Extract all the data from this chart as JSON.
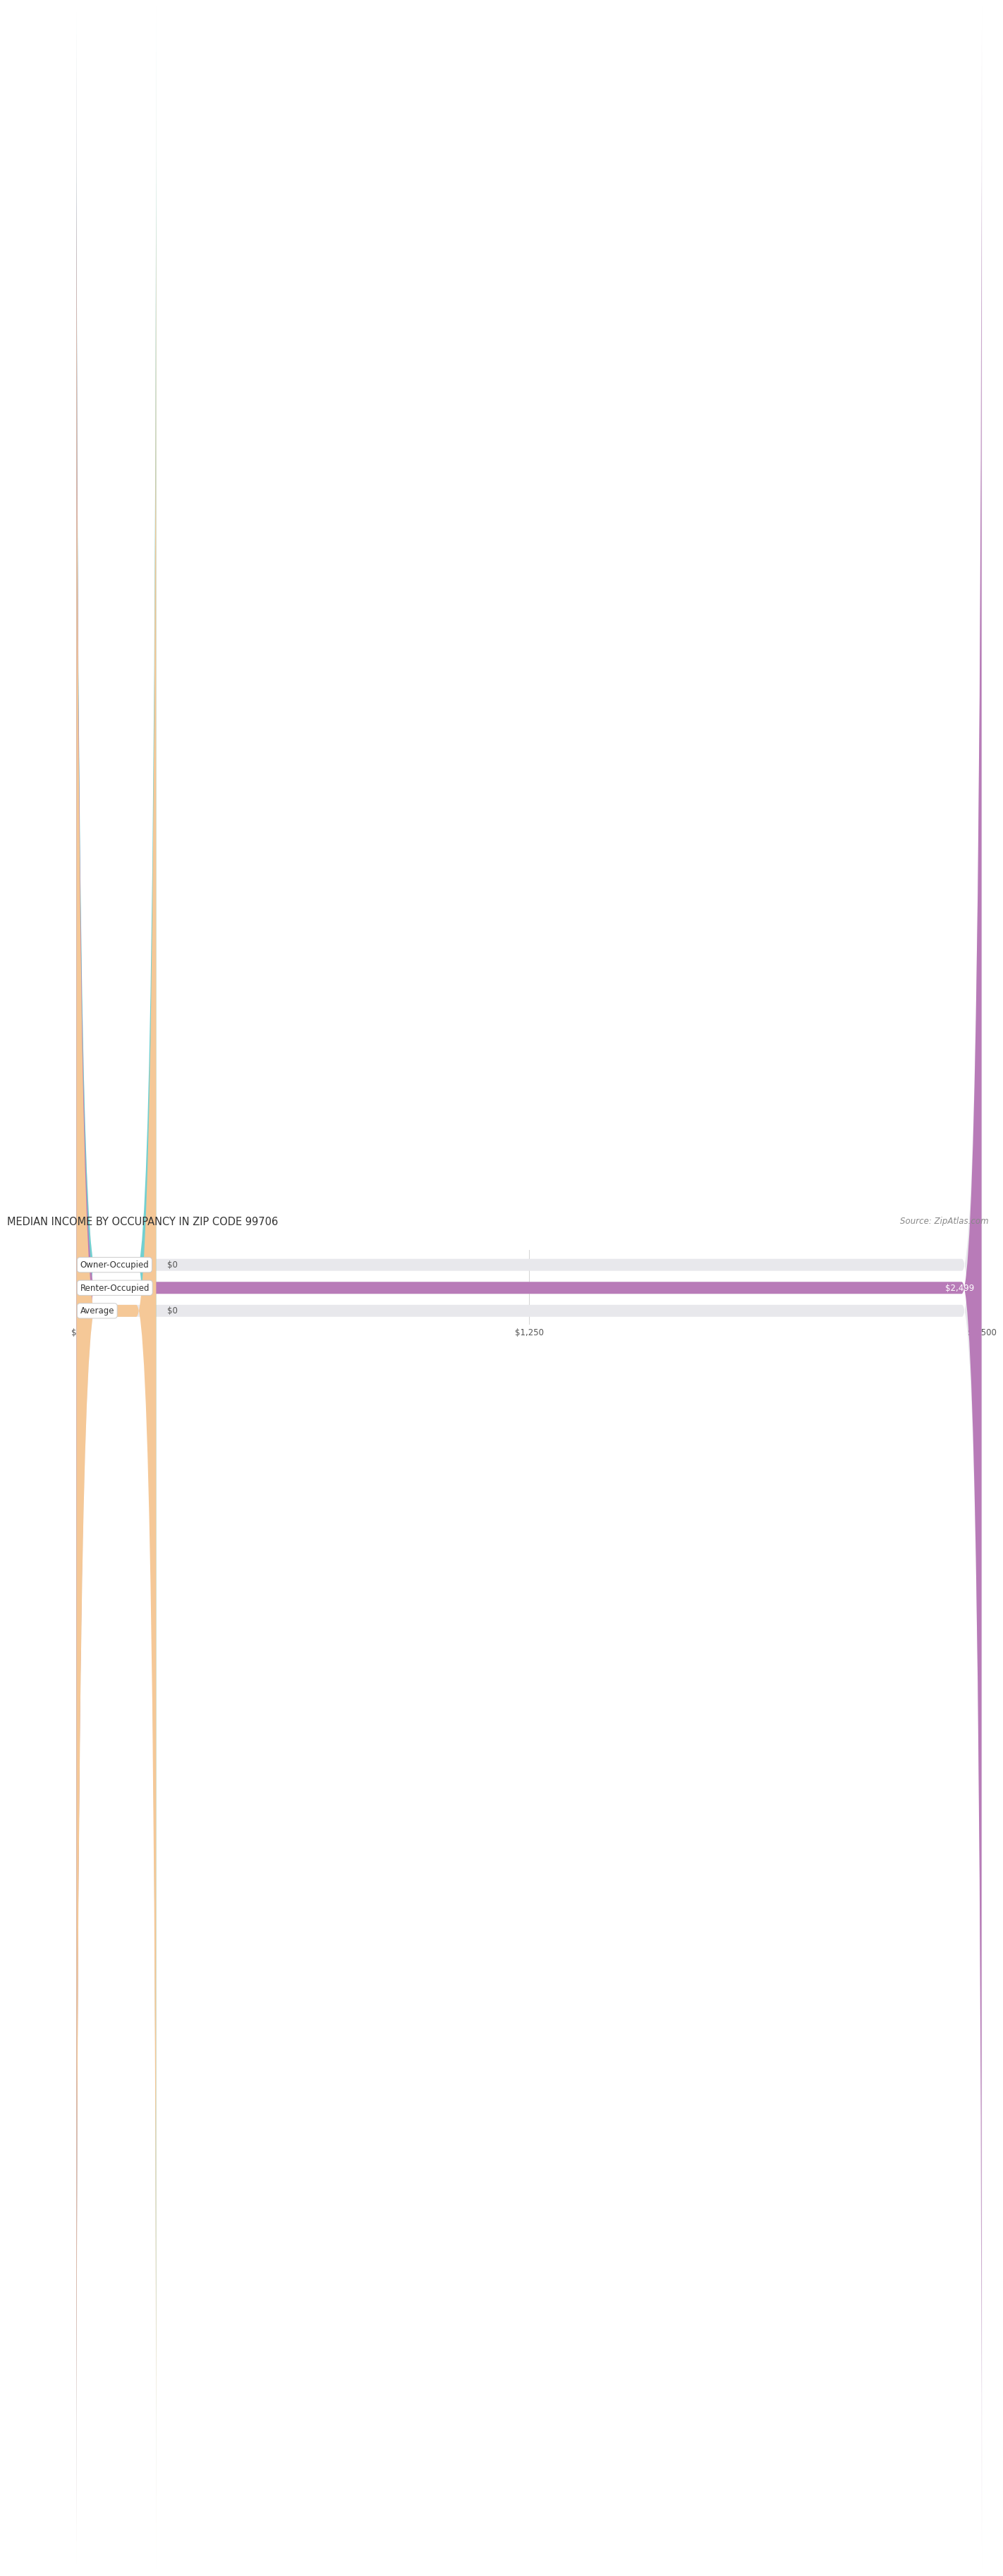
{
  "title": "MEDIAN INCOME BY OCCUPANCY IN ZIP CODE 99706",
  "source": "Source: ZipAtlas.com",
  "categories": [
    "Owner-Occupied",
    "Renter-Occupied",
    "Average"
  ],
  "values": [
    0,
    2499,
    0
  ],
  "max_value": 2500,
  "bar_colors": [
    "#72d0d0",
    "#b87bb8",
    "#f5c897"
  ],
  "bar_bg_color": "#e8e8ec",
  "value_labels": [
    "$0",
    "$2,499",
    "$0"
  ],
  "tick_labels": [
    "$0",
    "$1,250",
    "$2,500"
  ],
  "tick_values": [
    0,
    1250,
    2500
  ],
  "title_fontsize": 10.5,
  "label_fontsize": 8.5,
  "tick_fontsize": 8.5,
  "source_fontsize": 8.5,
  "background_color": "#ffffff",
  "bar_height": 0.52
}
